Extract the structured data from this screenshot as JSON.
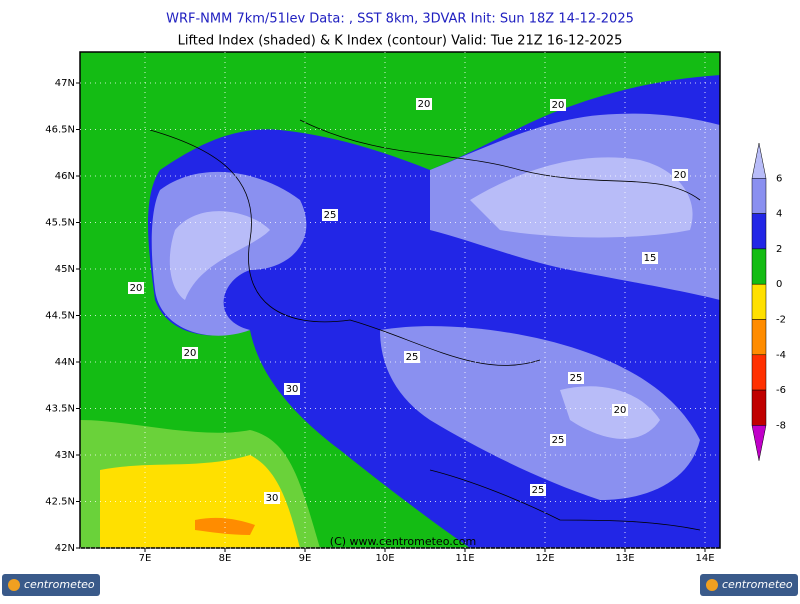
{
  "header": {
    "line1": "WRF-NMM 7km/51lev   Data: , SST 8km, 3DVAR   Init: Sun 18Z 14-12-2025",
    "line2": "Lifted Index (shaded) & K Index (contour)  Valid: Tue 21Z 16-12-2025"
  },
  "map": {
    "lat_labels": [
      "47N",
      "46.5N",
      "46N",
      "45.5N",
      "45N",
      "44.5N",
      "44N",
      "43.5N",
      "43N",
      "42.5N",
      "42N"
    ],
    "lon_labels": [
      "7E",
      "8E",
      "9E",
      "10E",
      "11E",
      "12E",
      "13E",
      "14E"
    ],
    "contour_labels": [
      "20",
      "20",
      "20",
      "25",
      "15",
      "20",
      "20",
      "25",
      "30",
      "25",
      "20",
      "25",
      "30",
      "25"
    ],
    "watermark": "(C) www.centrometeo.com"
  },
  "colorbar": {
    "labels": [
      "6",
      "4",
      "2",
      "0",
      "-2",
      "-4",
      "-6",
      "-8"
    ],
    "colors": [
      "#b8bcf8",
      "#8a90f0",
      "#2226e6",
      "#14bc14",
      "#ffe000",
      "#ff8c00",
      "#ff3000",
      "#c00000",
      "#c000c8"
    ]
  },
  "logos": {
    "left": "centrometeo",
    "right": "centrometeo"
  }
}
